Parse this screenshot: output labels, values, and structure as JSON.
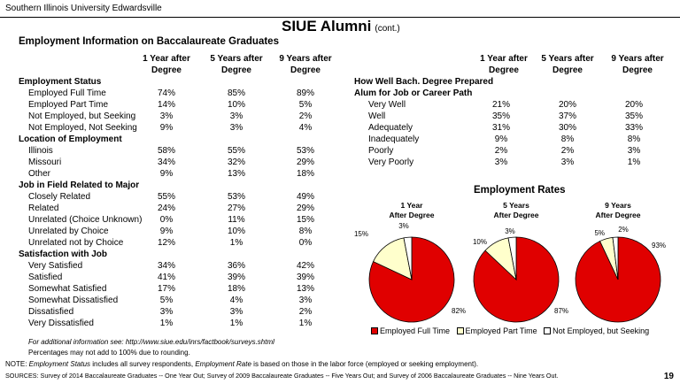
{
  "header": {
    "university": "Southern Illinois University Edwardsville",
    "title": "SIUE Alumni",
    "title_sub": "(cont.)",
    "section_title": "Employment Information on Baccalaureate Graduates"
  },
  "columns": [
    "1 Year after Degree",
    "5 Years after Degree",
    "9 Years after Degree"
  ],
  "left_table": [
    {
      "label": "Employment Status",
      "category": true
    },
    {
      "label": "Employed Full Time",
      "values": [
        "74%",
        "85%",
        "89%"
      ]
    },
    {
      "label": "Employed Part Time",
      "values": [
        "14%",
        "10%",
        "5%"
      ]
    },
    {
      "label": "Not Employed, but Seeking",
      "values": [
        "3%",
        "3%",
        "2%"
      ]
    },
    {
      "label": "Not Employed, Not Seeking",
      "values": [
        "9%",
        "3%",
        "4%"
      ]
    },
    {
      "label": "Location of Employment",
      "category": true
    },
    {
      "label": "Illinois",
      "values": [
        "58%",
        "55%",
        "53%"
      ]
    },
    {
      "label": "Missouri",
      "values": [
        "34%",
        "32%",
        "29%"
      ]
    },
    {
      "label": "Other",
      "values": [
        "9%",
        "13%",
        "18%"
      ]
    },
    {
      "label": "Job in Field Related to Major",
      "category": true
    },
    {
      "label": "Closely Related",
      "values": [
        "55%",
        "53%",
        "49%"
      ]
    },
    {
      "label": "Related",
      "values": [
        "24%",
        "27%",
        "29%"
      ]
    },
    {
      "label": "Unrelated (Choice Unknown)",
      "values": [
        "0%",
        "11%",
        "15%"
      ]
    },
    {
      "label": "Unrelated by Choice",
      "values": [
        "9%",
        "10%",
        "8%"
      ]
    },
    {
      "label": "Unrelated not by Choice",
      "values": [
        "12%",
        "1%",
        "0%"
      ]
    },
    {
      "label": "Satisfaction with Job",
      "category": true
    },
    {
      "label": "Very Satisfied",
      "values": [
        "34%",
        "36%",
        "42%"
      ]
    },
    {
      "label": "Satisfied",
      "values": [
        "41%",
        "39%",
        "39%"
      ]
    },
    {
      "label": "Somewhat Satisfied",
      "values": [
        "17%",
        "18%",
        "13%"
      ]
    },
    {
      "label": "Somewhat Dissatisfied",
      "values": [
        "5%",
        "4%",
        "3%"
      ]
    },
    {
      "label": "Dissatisfied",
      "values": [
        "3%",
        "3%",
        "2%"
      ]
    },
    {
      "label": "Very Dissatisfied",
      "values": [
        "1%",
        "1%",
        "1%"
      ]
    }
  ],
  "right_table": {
    "category_line1": "How Well Bach. Degree Prepared",
    "category_line2": "Alum for Job or Career Path",
    "rows": [
      {
        "label": "Very Well",
        "values": [
          "21%",
          "20%",
          "20%"
        ]
      },
      {
        "label": "Well",
        "values": [
          "35%",
          "37%",
          "35%"
        ]
      },
      {
        "label": "Adequately",
        "values": [
          "31%",
          "30%",
          "33%"
        ]
      },
      {
        "label": "Inadequately",
        "values": [
          "9%",
          "8%",
          "8%"
        ]
      },
      {
        "label": "Poorly",
        "values": [
          "2%",
          "2%",
          "3%"
        ]
      },
      {
        "label": "Very Poorly",
        "values": [
          "3%",
          "3%",
          "1%"
        ]
      }
    ]
  },
  "colors": {
    "full_time": "#e00000",
    "part_time": "#ffffcc",
    "seeking": "#ffffff"
  },
  "chart_data": {
    "type": "pie",
    "title": "Employment Rates",
    "legend": [
      "Employed Full Time",
      "Employed Part Time",
      "Not Employed, but Seeking"
    ],
    "legend_position": "bottom",
    "charts": [
      {
        "title_line1": "1 Year",
        "title_line2": "After Degree",
        "values": [
          82,
          15,
          3
        ],
        "labels": [
          "82%",
          "15%",
          "3%"
        ]
      },
      {
        "title_line1": "5 Years",
        "title_line2": "After Degree",
        "values": [
          87,
          10,
          3
        ],
        "labels": [
          "87%",
          "10%",
          "3%"
        ]
      },
      {
        "title_line1": "9 Years",
        "title_line2": "After Degree",
        "values": [
          93,
          5,
          2
        ],
        "labels": [
          "93%",
          "5%",
          "2%"
        ]
      }
    ]
  },
  "footer": {
    "info_prefix": "For additional information see:  ",
    "info_url": "http://www.siue.edu/inrs/factbook/surveys.shtml",
    "rounding": "Percentages may not add to 100% due to rounding.",
    "note_a": "NOTE:  ",
    "note_b": "Employment Status",
    "note_c": " includes all survey respondents, ",
    "note_d": "Employment Rate",
    "note_e": " is based on those in the labor force (employed or seeking employment).",
    "sources": "SOURCES:  Survey of 2014 Baccalaureate Graduates -- One Year Out; Survey of 2009 Baccalaureate Graduates -- Five Years Out; and Survey of 2006 Baccalaureate Graduates -- Nine Years Out.",
    "page_number": "19"
  }
}
